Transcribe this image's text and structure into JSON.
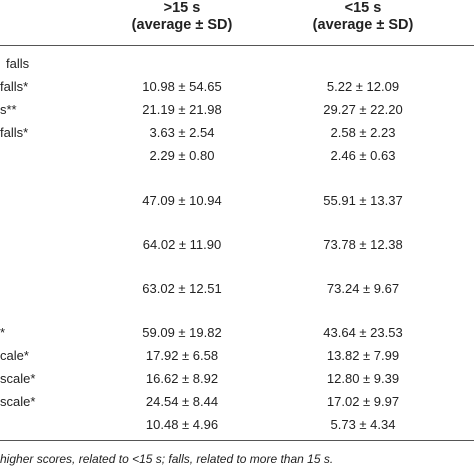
{
  "header": {
    "col1_title": ">15 s",
    "col1_sub": "(average ± SD)",
    "col2_title": "<15 s",
    "col2_sub": "(average ± SD)"
  },
  "section_label": "falls",
  "rows": [
    {
      "label": "falls*",
      "col1": "10.98 ± 54.65",
      "col2": "5.22 ± 12.09"
    },
    {
      "label": "s**",
      "col1": "21.19 ± 21.98",
      "col2": "29.27 ± 22.20"
    },
    {
      "label": "falls*",
      "col1": "3.63 ± 2.54",
      "col2": "2.58 ± 2.23"
    },
    {
      "label": "",
      "col1": "2.29 ± 0.80",
      "col2": "2.46 ± 0.63"
    },
    {
      "label": "",
      "col1": "47.09 ± 10.94",
      "col2": "55.91 ± 13.37"
    },
    {
      "label": "",
      "col1": "64.02 ± 11.90",
      "col2": "73.78 ± 12.38"
    },
    {
      "label": "",
      "col1": "63.02 ± 12.51",
      "col2": "73.24 ± 9.67"
    },
    {
      "label": "*",
      "col1": "59.09 ± 19.82",
      "col2": "43.64 ± 23.53"
    },
    {
      "label": "cale*",
      "col1": "17.92 ± 6.58",
      "col2": "13.82 ± 7.99"
    },
    {
      "label": "scale*",
      "col1": "16.62 ± 8.92",
      "col2": "12.80 ± 9.39"
    },
    {
      "label": "scale*",
      "col1": "24.54 ± 8.44",
      "col2": "17.02 ± 9.97"
    },
    {
      "label": "",
      "col1": "10.48 ± 4.96",
      "col2": "5.73 ± 4.34"
    }
  ],
  "footnote": "higher scores, related to <15 s; falls, related to more than 15 s."
}
